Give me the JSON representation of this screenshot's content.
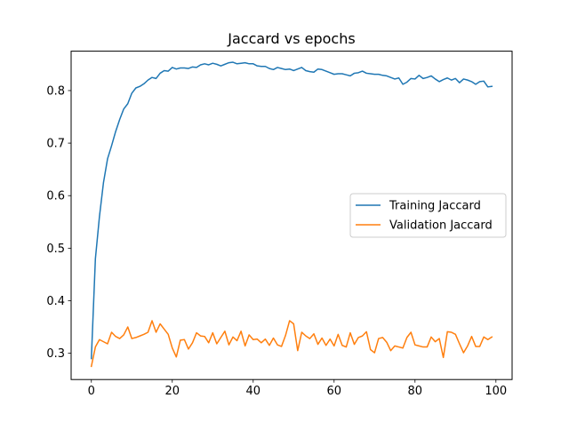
{
  "chart_data": {
    "type": "line",
    "title": "Jaccard vs epochs",
    "xlabel": "",
    "ylabel": "",
    "xlim": [
      -5,
      104
    ],
    "ylim": [
      0.25,
      0.875
    ],
    "x_ticks": [
      0,
      20,
      40,
      60,
      80,
      100
    ],
    "y_ticks": [
      0.3,
      0.4,
      0.5,
      0.6,
      0.7,
      0.8
    ],
    "grid": false,
    "legend_position": "center-right",
    "x": [
      0,
      1,
      2,
      3,
      4,
      5,
      6,
      7,
      8,
      9,
      10,
      11,
      12,
      13,
      14,
      15,
      16,
      17,
      18,
      19,
      20,
      21,
      22,
      23,
      24,
      25,
      26,
      27,
      28,
      29,
      30,
      31,
      32,
      33,
      34,
      35,
      36,
      37,
      38,
      39,
      40,
      41,
      42,
      43,
      44,
      45,
      46,
      47,
      48,
      49,
      50,
      51,
      52,
      53,
      54,
      55,
      56,
      57,
      58,
      59,
      60,
      61,
      62,
      63,
      64,
      65,
      66,
      67,
      68,
      69,
      70,
      71,
      72,
      73,
      74,
      75,
      76,
      77,
      78,
      79,
      80,
      81,
      82,
      83,
      84,
      85,
      86,
      87,
      88,
      89,
      90,
      91,
      92,
      93,
      94,
      95,
      96,
      97,
      98,
      99
    ],
    "series": [
      {
        "name": "Training Jaccard",
        "color": "#1f77b4",
        "values": [
          0.29,
          0.48,
          0.56,
          0.625,
          0.67,
          0.695,
          0.722,
          0.745,
          0.765,
          0.775,
          0.795,
          0.805,
          0.808,
          0.813,
          0.82,
          0.825,
          0.823,
          0.833,
          0.838,
          0.837,
          0.844,
          0.841,
          0.843,
          0.843,
          0.842,
          0.845,
          0.844,
          0.849,
          0.851,
          0.849,
          0.852,
          0.85,
          0.847,
          0.85,
          0.853,
          0.854,
          0.851,
          0.852,
          0.853,
          0.851,
          0.851,
          0.847,
          0.846,
          0.846,
          0.842,
          0.84,
          0.844,
          0.842,
          0.84,
          0.841,
          0.838,
          0.841,
          0.844,
          0.838,
          0.836,
          0.835,
          0.841,
          0.84,
          0.837,
          0.834,
          0.831,
          0.832,
          0.832,
          0.83,
          0.828,
          0.833,
          0.834,
          0.837,
          0.833,
          0.832,
          0.831,
          0.831,
          0.829,
          0.828,
          0.825,
          0.822,
          0.824,
          0.812,
          0.816,
          0.823,
          0.822,
          0.829,
          0.823,
          0.825,
          0.828,
          0.822,
          0.817,
          0.821,
          0.824,
          0.82,
          0.823,
          0.815,
          0.822,
          0.82,
          0.817,
          0.812,
          0.817,
          0.818,
          0.807,
          0.808
        ]
      },
      {
        "name": "Validation Jaccard",
        "color": "#ff7f0e",
        "values": [
          0.275,
          0.312,
          0.326,
          0.322,
          0.318,
          0.34,
          0.332,
          0.328,
          0.335,
          0.35,
          0.328,
          0.33,
          0.333,
          0.336,
          0.34,
          0.362,
          0.34,
          0.356,
          0.346,
          0.336,
          0.31,
          0.293,
          0.325,
          0.326,
          0.308,
          0.32,
          0.339,
          0.333,
          0.332,
          0.32,
          0.339,
          0.318,
          0.33,
          0.342,
          0.316,
          0.331,
          0.324,
          0.342,
          0.314,
          0.335,
          0.326,
          0.327,
          0.32,
          0.327,
          0.315,
          0.329,
          0.316,
          0.313,
          0.334,
          0.362,
          0.356,
          0.305,
          0.34,
          0.333,
          0.328,
          0.337,
          0.317,
          0.329,
          0.315,
          0.327,
          0.314,
          0.336,
          0.315,
          0.312,
          0.339,
          0.317,
          0.33,
          0.333,
          0.341,
          0.307,
          0.301,
          0.328,
          0.33,
          0.321,
          0.305,
          0.314,
          0.312,
          0.31,
          0.33,
          0.34,
          0.316,
          0.314,
          0.312,
          0.312,
          0.331,
          0.322,
          0.328,
          0.292,
          0.341,
          0.34,
          0.336,
          0.318,
          0.301,
          0.314,
          0.332,
          0.313,
          0.313,
          0.331,
          0.326,
          0.331
        ]
      }
    ]
  }
}
